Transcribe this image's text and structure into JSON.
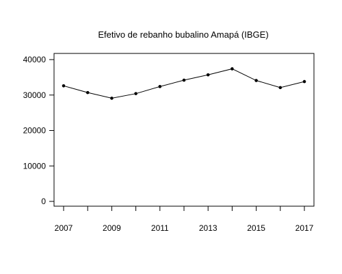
{
  "chart_data": {
    "type": "line",
    "title": "Efetivo de rebanho bubalino Amapá (IBGE)",
    "xlabel": "",
    "ylabel": "",
    "x": [
      2007,
      2008,
      2009,
      2010,
      2011,
      2012,
      2013,
      2014,
      2015,
      2016,
      2017
    ],
    "series": [
      {
        "values": [
          32600,
          30700,
          29100,
          30400,
          32400,
          34200,
          35700,
          37400,
          34100,
          32100,
          33800
        ]
      }
    ],
    "x_ticks": [
      "2007",
      "2009",
      "2011",
      "2013",
      "2015",
      "2017"
    ],
    "y_ticks": [
      "0",
      "10000",
      "20000",
      "30000",
      "40000"
    ],
    "xlim": [
      2007,
      2017
    ],
    "ylim": [
      0,
      40000
    ],
    "grid": false,
    "line_color": "#000000",
    "marker": "filled-circle"
  }
}
